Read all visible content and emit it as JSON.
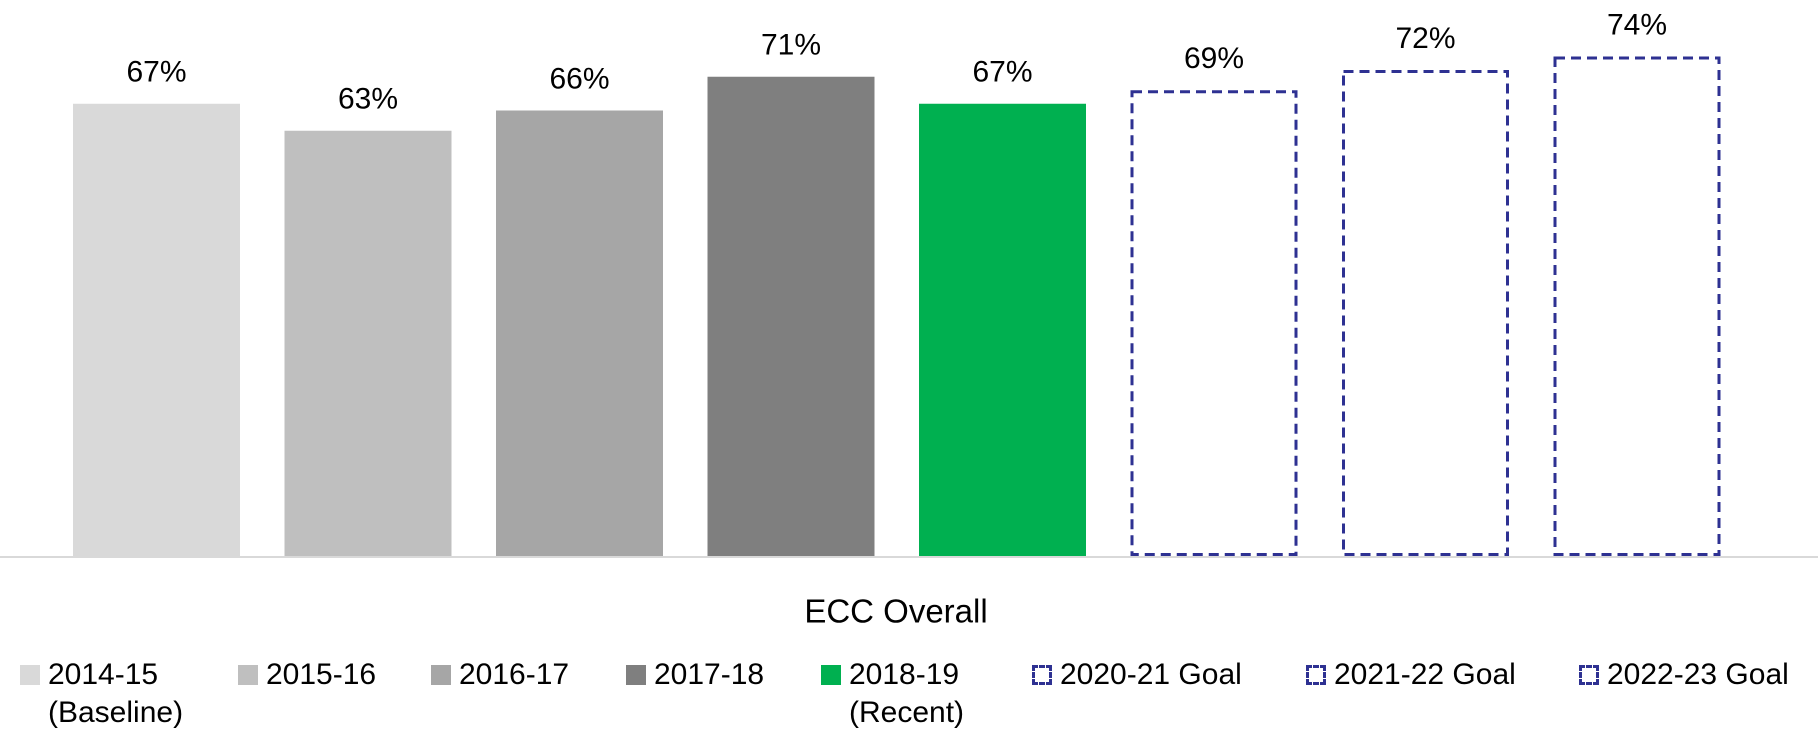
{
  "chart_data": {
    "type": "bar",
    "categories": [
      "ECC Overall"
    ],
    "ylim": [
      0,
      80
    ],
    "series": [
      {
        "name": "2014-15 (Baseline)",
        "color": "#d9d9d9",
        "style": "solid",
        "values": [
          67
        ],
        "value_labels": [
          "67%"
        ]
      },
      {
        "name": "2015-16",
        "color": "#bfbfbf",
        "style": "solid",
        "values": [
          63
        ],
        "value_labels": [
          "63%"
        ]
      },
      {
        "name": "2016-17",
        "color": "#a6a6a6",
        "style": "solid",
        "values": [
          66
        ],
        "value_labels": [
          "66%"
        ]
      },
      {
        "name": "2017-18",
        "color": "#7f7f7f",
        "style": "solid",
        "values": [
          71
        ],
        "value_labels": [
          "71%"
        ]
      },
      {
        "name": "2018-19 (Recent)",
        "color": "#00b050",
        "style": "solid",
        "values": [
          67
        ],
        "value_labels": [
          "67%"
        ]
      },
      {
        "name": "2020-21 Goal",
        "color": "#2e3192",
        "style": "dashed",
        "values": [
          69
        ],
        "value_labels": [
          "69%"
        ]
      },
      {
        "name": "2021-22 Goal",
        "color": "#2e3192",
        "style": "dashed",
        "values": [
          72
        ],
        "value_labels": [
          "72%"
        ]
      },
      {
        "name": "2022-23 Goal",
        "color": "#2e3192",
        "style": "dashed",
        "values": [
          74
        ],
        "value_labels": [
          "74%"
        ]
      }
    ]
  }
}
